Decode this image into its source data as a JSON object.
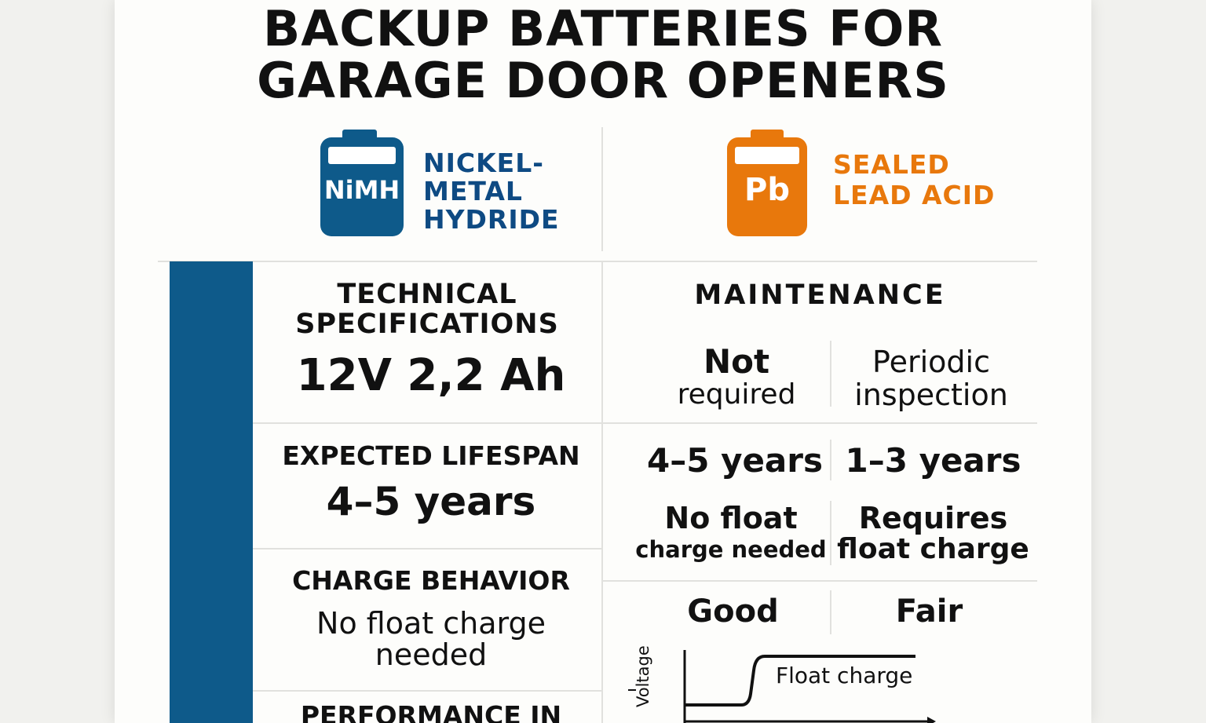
{
  "title": {
    "line1": "BACKUP BATTERIES FOR",
    "line2": "GARAGE DOOR OPENERS"
  },
  "batteries": {
    "nimh": {
      "icon_text": "NiMH",
      "label": [
        "NICKEL-",
        "METAL",
        "HYDRIDE"
      ],
      "color": "#0e5a8a"
    },
    "sla": {
      "icon_text": "Pb",
      "label": [
        "SEALED",
        "LEAD ACID"
      ],
      "color": "#e8780c"
    }
  },
  "left_column": {
    "technical": {
      "heading": [
        "TECHNICAL",
        "SPECIFICATIONS"
      ],
      "value": "12V 2,2 Ah"
    },
    "lifespan": {
      "heading": "EXPECTED LIFESPAN",
      "value": "4–5 years"
    },
    "charge": {
      "heading": "CHARGE BEHAVIOR",
      "value": [
        "No float charge",
        "needed"
      ]
    },
    "performance": {
      "heading": "PERFORMANCE IN"
    }
  },
  "right_column": {
    "maintenance": {
      "heading": "MAINTENANCE",
      "nimh": [
        "Not",
        "required"
      ],
      "sla": [
        "Periodic",
        "inspection"
      ]
    },
    "lifespan": {
      "nimh": "4–5 years",
      "sla": "1–3 years"
    },
    "charge": {
      "nimh": [
        "No float",
        "charge needed"
      ],
      "sla": [
        "Requires",
        "float charge"
      ]
    },
    "performance": {
      "nimh": "Good",
      "sla": "Fair"
    }
  },
  "graph": {
    "y_label": "Voltage",
    "curve_label": "Float charge"
  }
}
